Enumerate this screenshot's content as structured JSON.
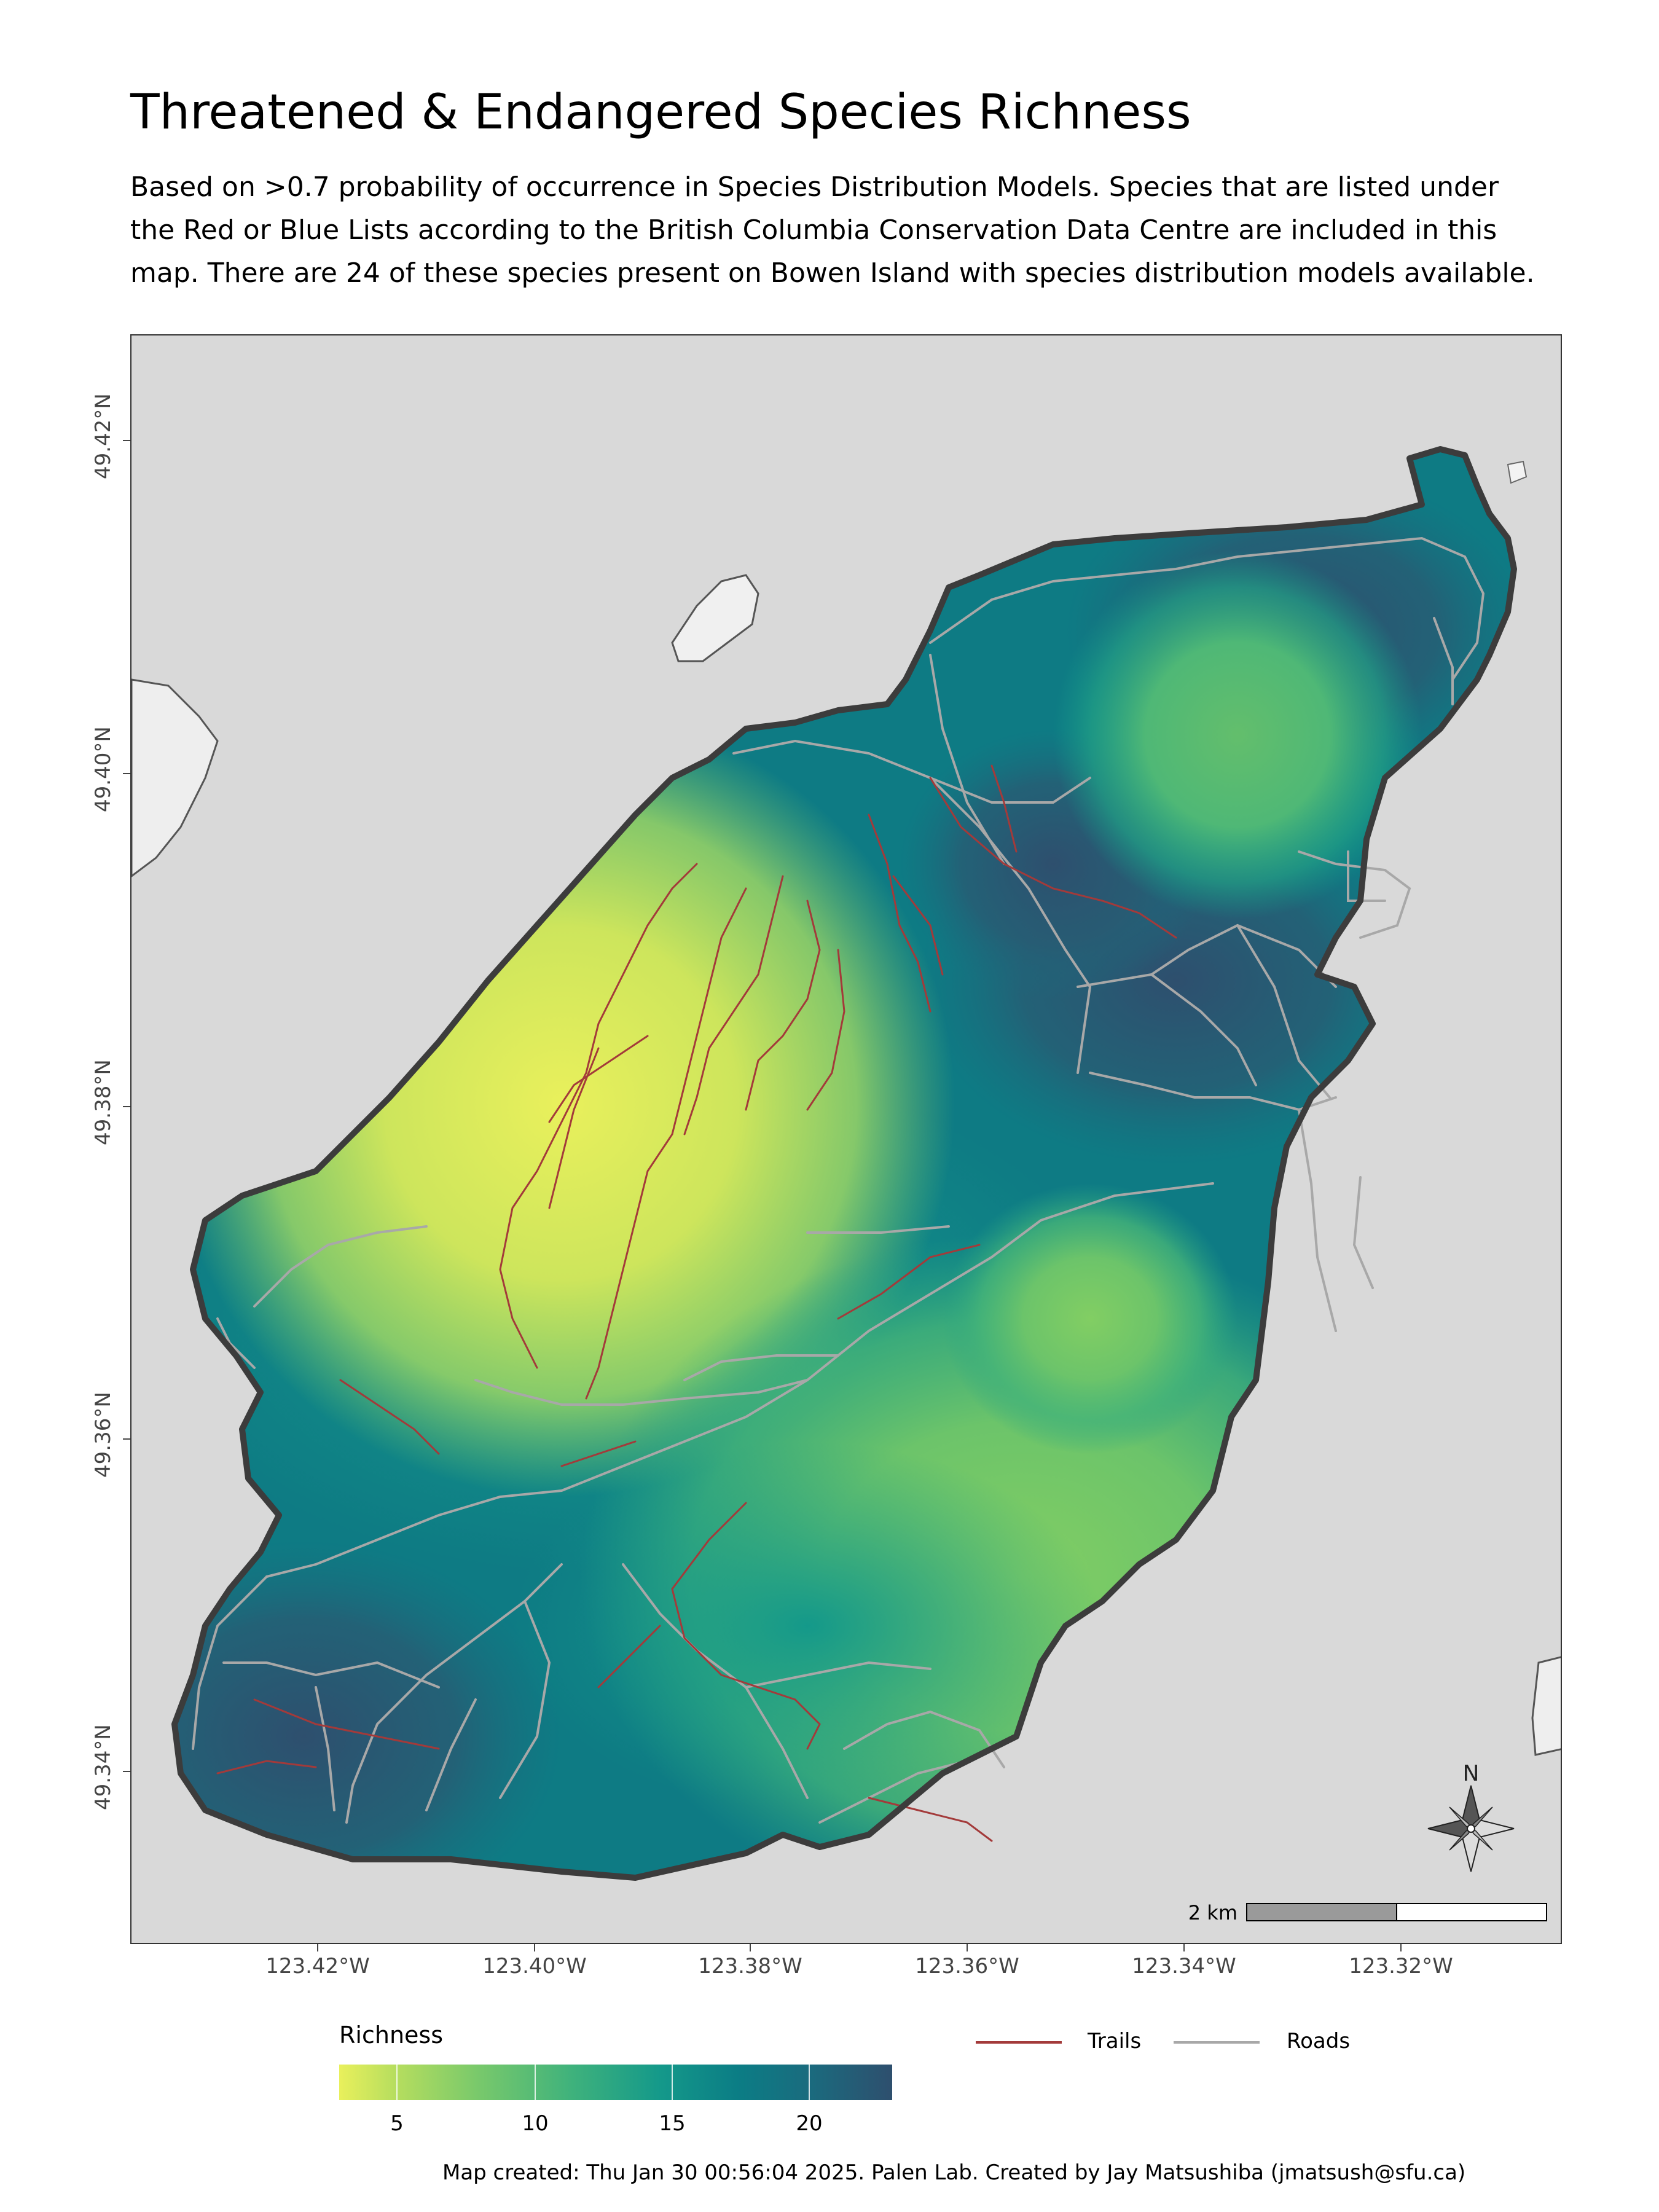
{
  "title": "Threatened & Endangered Species Richness",
  "subtitle": "Based on >0.7 probability of occurrence in Species Distribution Models. Species that are listed under the Red or Blue Lists according to the British Columbia Conservation Data Centre are included in this map. There are 24 of these species present on Bowen Island with species distribution models available.",
  "axes": {
    "y_ticks": [
      "49.42°N",
      "49.40°N",
      "49.38°N",
      "49.36°N",
      "49.34°N"
    ],
    "x_ticks": [
      "123.42°W",
      "123.40°W",
      "123.38°W",
      "123.36°W",
      "123.34°W",
      "123.32°W"
    ]
  },
  "legend": {
    "title": "Richness",
    "ticks": [
      "5",
      "10",
      "15",
      "20"
    ],
    "range": [
      3,
      24
    ],
    "colors": [
      "#e9f05c",
      "#79c96b",
      "#14998a",
      "#2e4f6e"
    ],
    "lines": [
      {
        "label": "Trails",
        "color": "#a33a3a"
      },
      {
        "label": "Roads",
        "color": "#a8a8a8"
      }
    ]
  },
  "map": {
    "compass_label": "N",
    "scale_label": "2 km",
    "background_color": "#d9d9d9",
    "outline_color": "#3c3c3c"
  },
  "caption": "Map created: Thu Jan 30 00:56:04 2025. Palen Lab. Created by Jay Matsushiba (jmatsush@sfu.ca)"
}
